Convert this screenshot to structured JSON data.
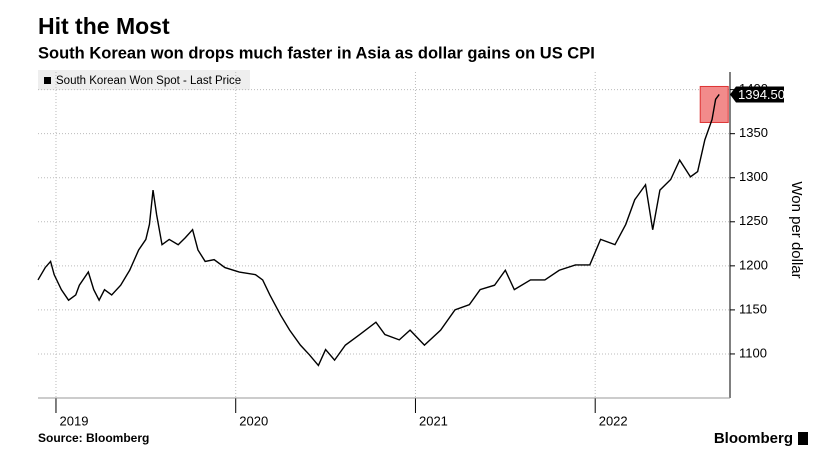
{
  "chart_data": {
    "type": "line",
    "title": "Hit the Most",
    "subtitle": "South Korean won drops much faster in Asia as dollar gains on US CPI",
    "y_axis_label": "Won per dollar",
    "source": "Source: Bloomberg",
    "brand": "Bloomberg",
    "x": [
      2018.9,
      2018.94,
      2018.97,
      2018.99,
      2019.03,
      2019.07,
      2019.11,
      2019.13,
      2019.18,
      2019.21,
      2019.24,
      2019.27,
      2019.31,
      2019.36,
      2019.41,
      2019.46,
      2019.5,
      2019.52,
      2019.54,
      2019.56,
      2019.59,
      2019.63,
      2019.68,
      2019.72,
      2019.76,
      2019.79,
      2019.83,
      2019.88,
      2019.94,
      2020.02,
      2020.11,
      2020.15,
      2020.19,
      2020.25,
      2020.3,
      2020.36,
      2020.41,
      2020.46,
      2020.5,
      2020.55,
      2020.61,
      2020.69,
      2020.78,
      2020.83,
      2020.91,
      2020.97,
      2021.05,
      2021.14,
      2021.22,
      2021.3,
      2021.36,
      2021.44,
      2021.5,
      2021.55,
      2021.64,
      2021.72,
      2021.8,
      2021.89,
      2021.97,
      2022.03,
      2022.11,
      2022.17,
      2022.22,
      2022.28,
      2022.32,
      2022.36,
      2022.42,
      2022.47,
      2022.53,
      2022.57,
      2022.61,
      2022.65,
      2022.67,
      2022.69
    ],
    "series": [
      {
        "name": "South Korean Won Spot - Last Price",
        "color": "#000000",
        "values": [
          1184,
          1198,
          1205,
          1190,
          1173,
          1161,
          1167,
          1178,
          1193,
          1173,
          1161,
          1173,
          1167,
          1178,
          1195,
          1218,
          1230,
          1247,
          1286,
          1258,
          1224,
          1230,
          1224,
          1232,
          1241,
          1218,
          1205,
          1207,
          1198,
          1193,
          1190,
          1184,
          1167,
          1144,
          1127,
          1110,
          1099,
          1087,
          1105,
          1093,
          1110,
          1122,
          1136,
          1122,
          1116,
          1127,
          1110,
          1127,
          1150,
          1156,
          1173,
          1178,
          1195,
          1173,
          1184,
          1184,
          1195,
          1201,
          1201,
          1230,
          1224,
          1247,
          1275,
          1292,
          1241,
          1286,
          1298,
          1320,
          1301,
          1307,
          1343,
          1366,
          1389,
          1394.5
        ]
      }
    ],
    "annotations": [
      {
        "value": 1394.5,
        "label": "1394.50"
      }
    ],
    "xlim": [
      2018.9,
      2022.75
    ],
    "xticks": [
      2019,
      2020,
      2021,
      2022
    ],
    "ylim": [
      1050,
      1420
    ],
    "yticks": [
      1100,
      1150,
      1200,
      1250,
      1300,
      1350,
      1400
    ],
    "grid": true
  }
}
